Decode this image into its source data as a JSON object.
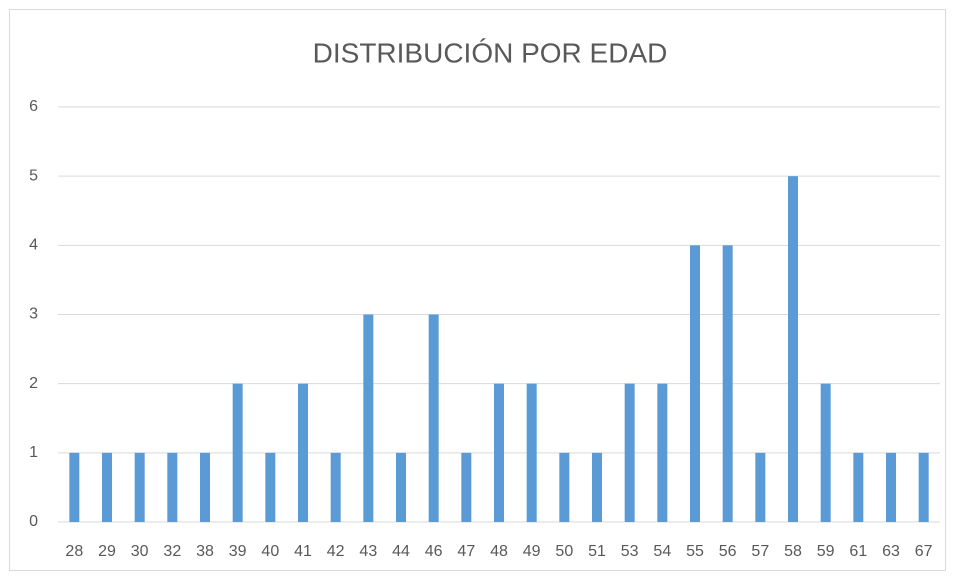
{
  "chart_data": {
    "type": "bar",
    "title": "DISTRIBUCIÓN POR EDAD",
    "categories": [
      "28",
      "29",
      "30",
      "32",
      "38",
      "39",
      "40",
      "41",
      "42",
      "43",
      "44",
      "46",
      "47",
      "48",
      "49",
      "50",
      "51",
      "53",
      "54",
      "55",
      "56",
      "57",
      "58",
      "59",
      "61",
      "63",
      "67"
    ],
    "values": [
      1,
      1,
      1,
      1,
      1,
      2,
      1,
      2,
      1,
      3,
      1,
      3,
      1,
      2,
      2,
      1,
      1,
      2,
      2,
      4,
      4,
      1,
      5,
      2,
      1,
      1,
      1
    ],
    "color": "#5b9bd5",
    "ylim": [
      0,
      6
    ],
    "yticks": [
      0,
      1,
      2,
      3,
      4,
      5,
      6
    ],
    "grid": true
  }
}
